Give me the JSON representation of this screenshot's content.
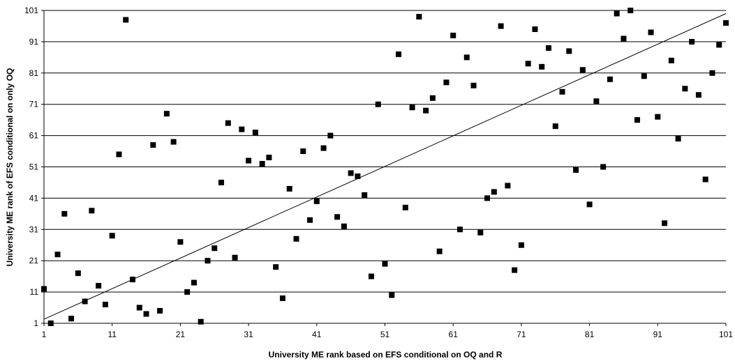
{
  "chart_data": {
    "type": "scatter",
    "title": "",
    "xlabel": "University ME rank based on EFS conditional on OQ and R",
    "ylabel": "University ME rank of EFS conditional on only OQ",
    "xlim": [
      1,
      101
    ],
    "ylim": [
      1,
      101
    ],
    "xticks": [
      1,
      11,
      21,
      31,
      41,
      51,
      61,
      71,
      81,
      91,
      101
    ],
    "yticks": [
      1,
      11,
      21,
      31,
      41,
      51,
      61,
      71,
      81,
      91,
      101
    ],
    "grid": "horizontal",
    "legend": "none",
    "marker": "square",
    "marker_color": "#000000",
    "trend_line": {
      "x": [
        1,
        101
      ],
      "y": [
        2.3,
        100
      ]
    },
    "points": [
      [
        1,
        12
      ],
      [
        2,
        1
      ],
      [
        3,
        23
      ],
      [
        4,
        36
      ],
      [
        5,
        2.5
      ],
      [
        6,
        17
      ],
      [
        7,
        8
      ],
      [
        8,
        37
      ],
      [
        9,
        13
      ],
      [
        10,
        7
      ],
      [
        11,
        29
      ],
      [
        12,
        55
      ],
      [
        13,
        98
      ],
      [
        14,
        15
      ],
      [
        15,
        6
      ],
      [
        16,
        4
      ],
      [
        17,
        58
      ],
      [
        18,
        5
      ],
      [
        19,
        68
      ],
      [
        20,
        59
      ],
      [
        21,
        27
      ],
      [
        22,
        11
      ],
      [
        23,
        14
      ],
      [
        24,
        1.5
      ],
      [
        25,
        21
      ],
      [
        26,
        25
      ],
      [
        27,
        46
      ],
      [
        28,
        65
      ],
      [
        29,
        22
      ],
      [
        30,
        63
      ],
      [
        31,
        53
      ],
      [
        32,
        62
      ],
      [
        33,
        52
      ],
      [
        34,
        54
      ],
      [
        35,
        19
      ],
      [
        36,
        9
      ],
      [
        37,
        44
      ],
      [
        38,
        28
      ],
      [
        39,
        56
      ],
      [
        40,
        34
      ],
      [
        41,
        40
      ],
      [
        42,
        57
      ],
      [
        43,
        61
      ],
      [
        44,
        35
      ],
      [
        45,
        32
      ],
      [
        46,
        49
      ],
      [
        47,
        48
      ],
      [
        48,
        42
      ],
      [
        49,
        16
      ],
      [
        50,
        71
      ],
      [
        51,
        20
      ],
      [
        52,
        10
      ],
      [
        53,
        87
      ],
      [
        54,
        38
      ],
      [
        55,
        70
      ],
      [
        56,
        99
      ],
      [
        57,
        69
      ],
      [
        58,
        73
      ],
      [
        59,
        24
      ],
      [
        60,
        78
      ],
      [
        61,
        93
      ],
      [
        62,
        31
      ],
      [
        63,
        86
      ],
      [
        64,
        77
      ],
      [
        65,
        30
      ],
      [
        66,
        41
      ],
      [
        67,
        43
      ],
      [
        68,
        96
      ],
      [
        69,
        45
      ],
      [
        70,
        18
      ],
      [
        71,
        26
      ],
      [
        72,
        84
      ],
      [
        73,
        95
      ],
      [
        74,
        83
      ],
      [
        75,
        89
      ],
      [
        76,
        64
      ],
      [
        77,
        75
      ],
      [
        78,
        88
      ],
      [
        79,
        50
      ],
      [
        80,
        82
      ],
      [
        81,
        39
      ],
      [
        82,
        72
      ],
      [
        83,
        51
      ],
      [
        84,
        79
      ],
      [
        85,
        100
      ],
      [
        86,
        92
      ],
      [
        87,
        101
      ],
      [
        88,
        66
      ],
      [
        89,
        80
      ],
      [
        90,
        94
      ],
      [
        91,
        67
      ],
      [
        92,
        33
      ],
      [
        93,
        85
      ],
      [
        94,
        60
      ],
      [
        95,
        76
      ],
      [
        96,
        91
      ],
      [
        97,
        74
      ],
      [
        98,
        47
      ],
      [
        99,
        81
      ],
      [
        100,
        90
      ],
      [
        101,
        97
      ]
    ]
  }
}
